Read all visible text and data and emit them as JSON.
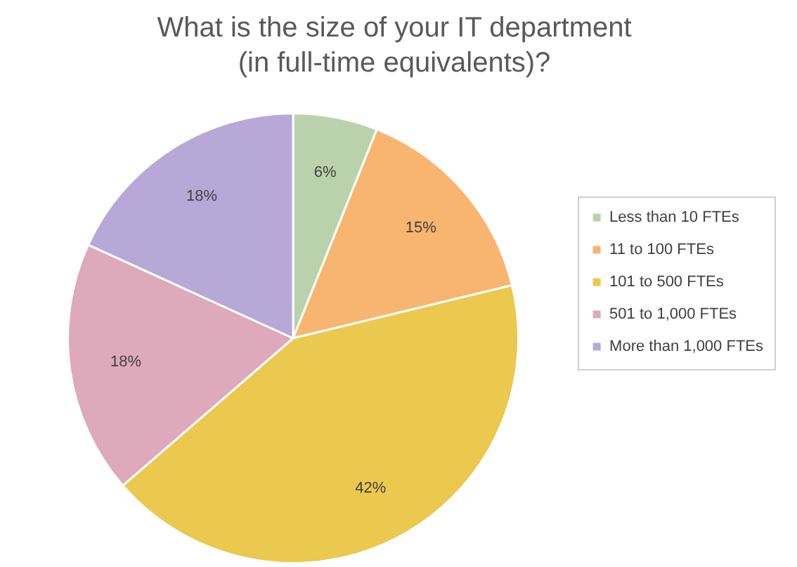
{
  "chart_data": {
    "type": "pie",
    "title": "What is the size of your IT department\n(in full-time equivalents)?",
    "categories": [
      "Less than 10 FTEs",
      "11 to 100 FTEs",
      "101 to 500 FTEs",
      "501 to 1,000 FTEs",
      "More than 1,000 FTEs"
    ],
    "values": [
      6,
      15,
      42,
      18,
      18
    ],
    "colors": [
      "#b9d2ac",
      "#f8b570",
      "#ebc84e",
      "#dda9bb",
      "#b8a8d8"
    ],
    "value_labels": [
      "6%",
      "15%",
      "42%",
      "18%",
      "18%"
    ],
    "legend": "right"
  }
}
